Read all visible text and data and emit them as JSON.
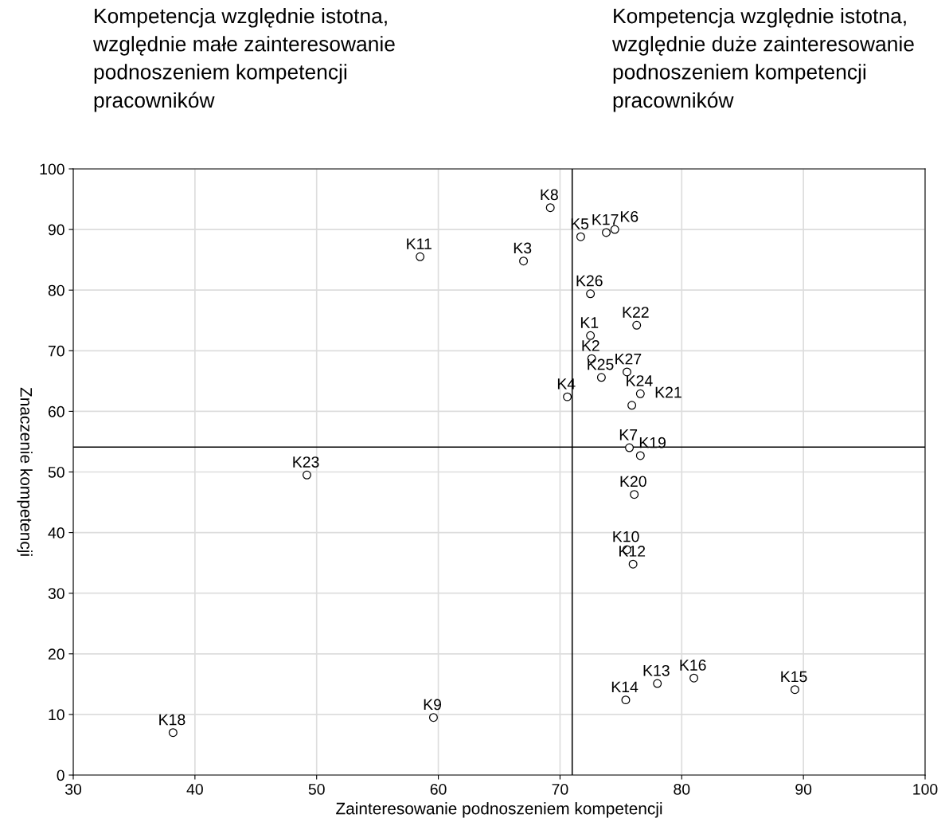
{
  "chart_data": {
    "type": "scatter",
    "xlabel": "Zainteresowanie podnoszeniem kompetencji",
    "ylabel": "Znaczenie kompetencji",
    "x": [
      69.2,
      71.7,
      73.8,
      74.5,
      58.5,
      67.0,
      72.5,
      76.3,
      72.5,
      72.6,
      73.4,
      75.5,
      76.6,
      75.9,
      70.6,
      75.7,
      76.6,
      76.1,
      75.5,
      76.0,
      49.2,
      75.4,
      78.0,
      81.0,
      89.3,
      59.6,
      38.2
    ],
    "values": [
      93.6,
      88.8,
      89.5,
      90.0,
      85.5,
      84.8,
      79.4,
      74.2,
      72.5,
      68.7,
      65.6,
      66.5,
      62.9,
      61.0,
      62.4,
      54.0,
      52.7,
      46.3,
      37.2,
      34.8,
      49.5,
      12.4,
      15.1,
      16.0,
      14.1,
      9.5,
      7.0
    ],
    "color": "#000000",
    "marker": "circle",
    "xlim": [
      30,
      100
    ],
    "xticks": [
      30,
      40,
      50,
      60,
      70,
      80,
      90,
      100
    ],
    "ylim": [
      0,
      100
    ],
    "yticks": [
      0,
      10,
      20,
      30,
      40,
      50,
      60,
      70,
      80,
      90,
      100
    ],
    "grid": true,
    "ref_lines": [
      {
        "axis": "x",
        "value": 71.0,
        "color": "#000000"
      },
      {
        "axis": "y",
        "value": 54.1,
        "color": "#000000"
      }
    ],
    "annotations": [
      "Kompetencja względnie istotna,\nwzględnie małe zainteresowanie\npodnoszeniem kompetencji\npracowników",
      "Kompetencja względnie istotna,\nwzględnie duże zainteresowanie\npodnoszeniem kompetencji\npracowników",
      {
        "text": "K8",
        "x": 69.2,
        "y": 93.6
      },
      {
        "text": "K5",
        "x": 71.7,
        "y": 88.8
      },
      {
        "text": "K17",
        "x": 73.8,
        "y": 89.5
      },
      {
        "text": "K6",
        "x": 74.5,
        "y": 90.0
      },
      {
        "text": "K11",
        "x": 58.5,
        "y": 85.5
      },
      {
        "text": "K3",
        "x": 67.0,
        "y": 84.8
      },
      {
        "text": "K26",
        "x": 72.5,
        "y": 79.4
      },
      {
        "text": "K22",
        "x": 76.3,
        "y": 74.2
      },
      {
        "text": "K1",
        "x": 72.5,
        "y": 72.5
      },
      {
        "text": "K2",
        "x": 72.6,
        "y": 68.7
      },
      {
        "text": "K25",
        "x": 73.4,
        "y": 65.6
      },
      {
        "text": "K27",
        "x": 75.5,
        "y": 66.5
      },
      {
        "text": "K24",
        "x": 76.6,
        "y": 62.9
      },
      {
        "text": "K21",
        "x": 75.9,
        "y": 61.0
      },
      {
        "text": "K4",
        "x": 70.6,
        "y": 62.4
      },
      {
        "text": "K7",
        "x": 75.7,
        "y": 54.0
      },
      {
        "text": "K19",
        "x": 76.6,
        "y": 52.7
      },
      {
        "text": "K20",
        "x": 76.1,
        "y": 46.3
      },
      {
        "text": "K10",
        "x": 75.5,
        "y": 37.2
      },
      {
        "text": "K12",
        "x": 76.0,
        "y": 34.8
      },
      {
        "text": "K23",
        "x": 49.2,
        "y": 49.5
      },
      {
        "text": "K14",
        "x": 75.4,
        "y": 12.4
      },
      {
        "text": "K13",
        "x": 78.0,
        "y": 15.1
      },
      {
        "text": "K16",
        "x": 81.0,
        "y": 16.0
      },
      {
        "text": "K15",
        "x": 89.3,
        "y": 14.1
      },
      {
        "text": "K9",
        "x": 59.6,
        "y": 9.5
      },
      {
        "text": "K18",
        "x": 38.2,
        "y": 7.0
      }
    ]
  }
}
